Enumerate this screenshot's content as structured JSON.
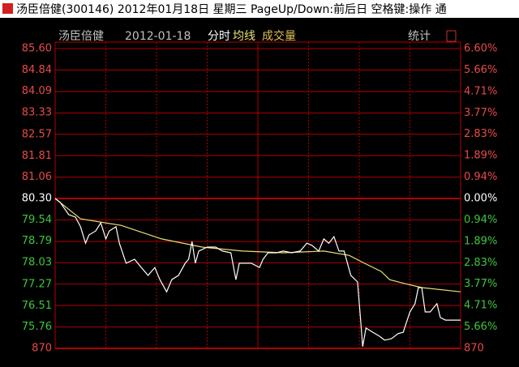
{
  "window_title": "汤臣倍健(300146) 2012年01月18日 星期三 PageUp/Down:前后日 空格键:操作 通",
  "chart_data": {
    "type": "line",
    "stock_name": "汤臣倍健",
    "date": "2012-01-18",
    "volume_label": "成交量",
    "stats_button": "统计",
    "xlim": [
      0,
      240
    ],
    "ylim": [
      75.0,
      85.6
    ],
    "yticks": [
      {
        "value": 85.6,
        "label": "85.60"
      },
      84.84,
      84.09,
      83.33,
      82.57,
      81.81,
      81.06,
      {
        "value": 80.3,
        "label": "80.30"
      },
      79.54,
      78.79,
      78.03,
      77.27,
      76.51,
      75.76
    ],
    "y2lim": [
      -6.6,
      6.6
    ],
    "y2ticks": [
      {
        "value": 6.6,
        "label": "6.60%"
      },
      {
        "value": 5.66,
        "label": "5.66%"
      },
      {
        "value": 4.71,
        "label": "4.71%"
      },
      {
        "value": 3.77,
        "label": "3.77%"
      },
      {
        "value": 2.83,
        "label": "2.83%"
      },
      {
        "value": 1.89,
        "label": "1.89%"
      },
      {
        "value": 0.94,
        "label": "0.94%"
      },
      {
        "value": 0,
        "label": "0.00%"
      },
      {
        "value": -0.94,
        "label": "0.94%"
      },
      {
        "value": -1.89,
        "label": "1.89%"
      },
      {
        "value": -2.83,
        "label": "2.83%"
      },
      {
        "value": -3.77,
        "label": "3.77%"
      },
      {
        "value": -4.71,
        "label": "4.71%"
      },
      {
        "value": -5.66,
        "label": "5.66%"
      }
    ],
    "volume_ticks": [
      870
    ],
    "up_color": "#e84a4a",
    "down_color": "#3cc83c",
    "flat_color": "#ffffff",
    "grid_color": "#b00000",
    "series": [
      {
        "name": "分时",
        "color": "#ffffff",
        "x": [
          0,
          3,
          8,
          12,
          15,
          18,
          20,
          24,
          27,
          30,
          32,
          36,
          38,
          42,
          47,
          51,
          55,
          59,
          62,
          66,
          69,
          73,
          77,
          79,
          81,
          83,
          85,
          90,
          95,
          99,
          104,
          107,
          109,
          111,
          116,
          121,
          123,
          126,
          131,
          135,
          140,
          145,
          149,
          152,
          156,
          159,
          162,
          165,
          168,
          171,
          175,
          179,
          181,
          182,
          184,
          188,
          192,
          195,
          199,
          203,
          206,
          210,
          213,
          215,
          217,
          219,
          222,
          226,
          228,
          231,
          240
        ],
        "values": [
          80.3,
          80.16,
          79.73,
          79.64,
          79.3,
          78.72,
          79.01,
          79.15,
          79.44,
          78.87,
          79.15,
          79.3,
          78.72,
          78.01,
          78.15,
          77.86,
          77.58,
          77.86,
          77.43,
          77.0,
          77.43,
          77.58,
          78.01,
          78.15,
          78.78,
          78.01,
          78.44,
          78.58,
          78.58,
          78.44,
          78.38,
          77.43,
          78.01,
          78.01,
          78.01,
          77.86,
          78.15,
          78.38,
          78.38,
          78.44,
          78.38,
          78.44,
          78.72,
          78.64,
          78.44,
          78.87,
          78.72,
          78.95,
          78.44,
          78.44,
          77.58,
          77.35,
          75.86,
          75.06,
          75.72,
          75.57,
          75.43,
          75.29,
          75.34,
          75.52,
          75.57,
          76.29,
          76.58,
          77.15,
          77.15,
          76.29,
          76.29,
          76.58,
          76.09,
          76.0,
          76.0
        ]
      },
      {
        "name": "均线",
        "color": "#e8e070",
        "x": [
          0,
          15,
          39,
          63,
          87,
          111,
          135,
          159,
          174,
          183,
          193,
          198,
          207,
          217,
          240
        ],
        "values": [
          80.3,
          79.58,
          79.35,
          78.87,
          78.58,
          78.44,
          78.38,
          78.44,
          78.29,
          78.01,
          77.72,
          77.43,
          77.29,
          77.15,
          77.0
        ]
      }
    ]
  }
}
